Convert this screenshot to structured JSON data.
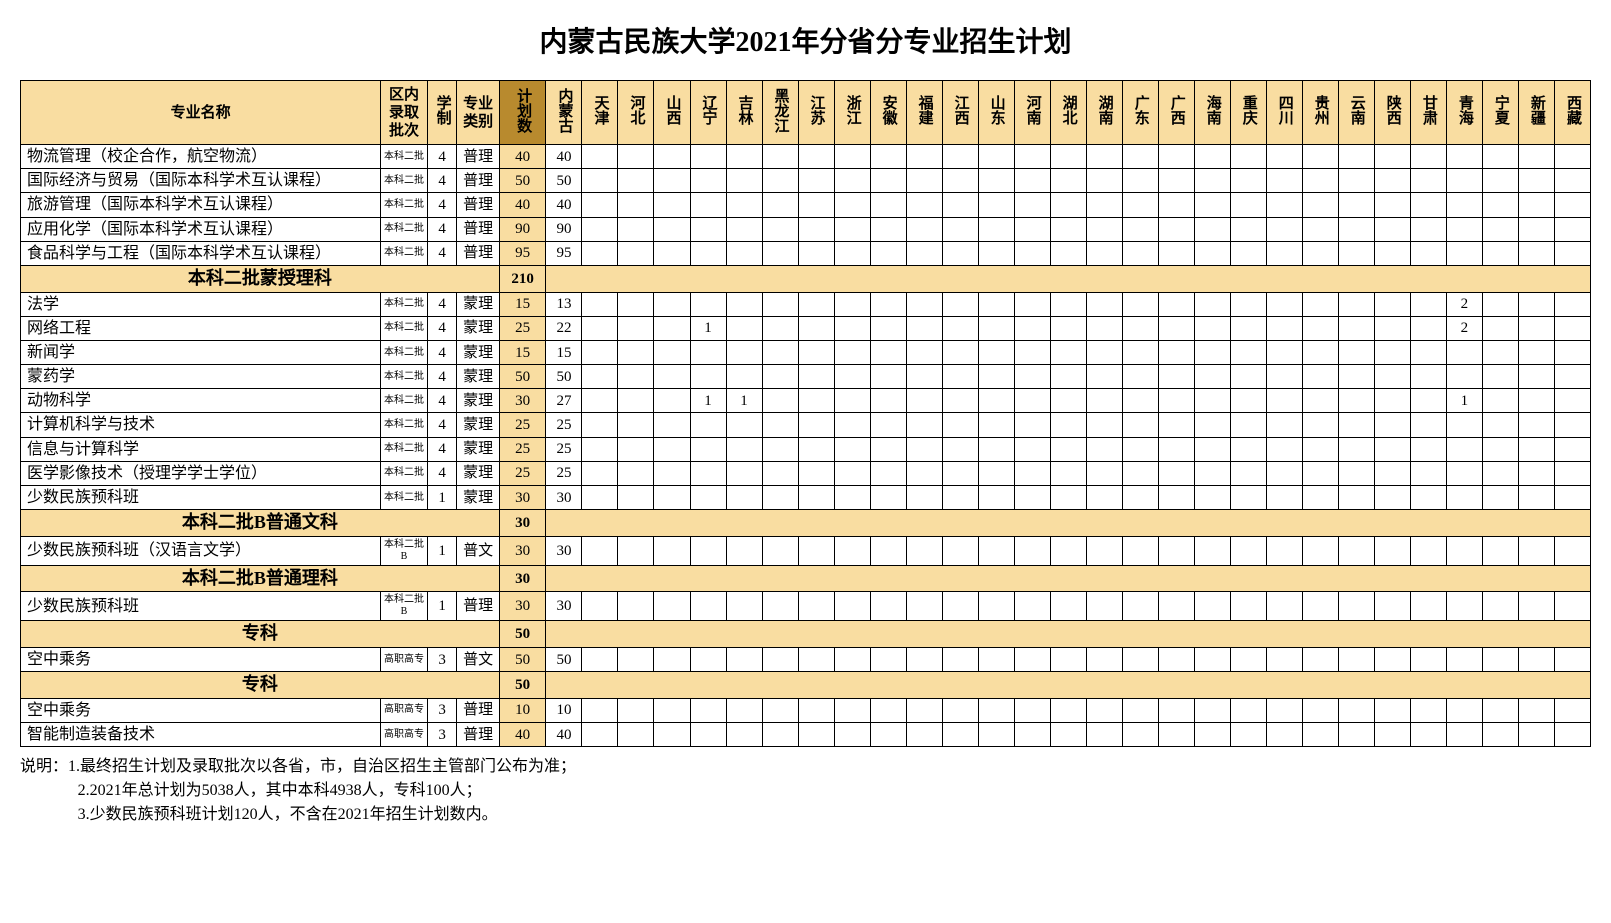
{
  "title": "内蒙古民族大学2021年分省分专业招生计划",
  "headers": {
    "name": "专业名称",
    "batch": "区内录取批次",
    "system": "学制",
    "category": "专业类别",
    "plan": "计划数",
    "provinces": [
      "内蒙古",
      "天津",
      "河北",
      "山西",
      "辽宁",
      "吉林",
      "黑龙江",
      "江苏",
      "浙江",
      "安徽",
      "福建",
      "江西",
      "山东",
      "河南",
      "湖北",
      "湖南",
      "广东",
      "广西",
      "海南",
      "重庆",
      "四川",
      "贵州",
      "云南",
      "陕西",
      "甘肃",
      "青海",
      "宁夏",
      "新疆",
      "西藏"
    ]
  },
  "rows": [
    {
      "type": "data",
      "name": "物流管理（校企合作，航空物流）",
      "batch": "本科二批",
      "sys": "4",
      "cat": "普理",
      "plan": "40",
      "vals": [
        "40",
        "",
        "",
        "",
        "",
        "",
        "",
        "",
        "",
        "",
        "",
        "",
        "",
        "",
        "",
        "",
        "",
        "",
        "",
        "",
        "",
        "",
        "",
        "",
        "",
        "",
        "",
        "",
        ""
      ]
    },
    {
      "type": "data",
      "name": "国际经济与贸易（国际本科学术互认课程）",
      "batch": "本科二批",
      "sys": "4",
      "cat": "普理",
      "plan": "50",
      "vals": [
        "50",
        "",
        "",
        "",
        "",
        "",
        "",
        "",
        "",
        "",
        "",
        "",
        "",
        "",
        "",
        "",
        "",
        "",
        "",
        "",
        "",
        "",
        "",
        "",
        "",
        "",
        "",
        "",
        ""
      ]
    },
    {
      "type": "data",
      "name": "旅游管理（国际本科学术互认课程）",
      "batch": "本科二批",
      "sys": "4",
      "cat": "普理",
      "plan": "40",
      "vals": [
        "40",
        "",
        "",
        "",
        "",
        "",
        "",
        "",
        "",
        "",
        "",
        "",
        "",
        "",
        "",
        "",
        "",
        "",
        "",
        "",
        "",
        "",
        "",
        "",
        "",
        "",
        "",
        "",
        ""
      ]
    },
    {
      "type": "data",
      "name": "应用化学（国际本科学术互认课程）",
      "batch": "本科二批",
      "sys": "4",
      "cat": "普理",
      "plan": "90",
      "vals": [
        "90",
        "",
        "",
        "",
        "",
        "",
        "",
        "",
        "",
        "",
        "",
        "",
        "",
        "",
        "",
        "",
        "",
        "",
        "",
        "",
        "",
        "",
        "",
        "",
        "",
        "",
        "",
        "",
        ""
      ]
    },
    {
      "type": "data",
      "name": "食品科学与工程（国际本科学术互认课程）",
      "batch": "本科二批",
      "sys": "4",
      "cat": "普理",
      "plan": "95",
      "vals": [
        "95",
        "",
        "",
        "",
        "",
        "",
        "",
        "",
        "",
        "",
        "",
        "",
        "",
        "",
        "",
        "",
        "",
        "",
        "",
        "",
        "",
        "",
        "",
        "",
        "",
        "",
        "",
        "",
        ""
      ]
    },
    {
      "type": "section",
      "title": "本科二批蒙授理科",
      "plan": "210"
    },
    {
      "type": "data",
      "name": "法学",
      "batch": "本科二批",
      "sys": "4",
      "cat": "蒙理",
      "plan": "15",
      "vals": [
        "13",
        "",
        "",
        "",
        "",
        "",
        "",
        "",
        "",
        "",
        "",
        "",
        "",
        "",
        "",
        "",
        "",
        "",
        "",
        "",
        "",
        "",
        "",
        "",
        "",
        "2",
        "",
        "",
        ""
      ]
    },
    {
      "type": "data",
      "name": "网络工程",
      "batch": "本科二批",
      "sys": "4",
      "cat": "蒙理",
      "plan": "25",
      "vals": [
        "22",
        "",
        "",
        "",
        "1",
        "",
        "",
        "",
        "",
        "",
        "",
        "",
        "",
        "",
        "",
        "",
        "",
        "",
        "",
        "",
        "",
        "",
        "",
        "",
        "",
        "2",
        "",
        "",
        ""
      ]
    },
    {
      "type": "data",
      "name": "新闻学",
      "batch": "本科二批",
      "sys": "4",
      "cat": "蒙理",
      "plan": "15",
      "vals": [
        "15",
        "",
        "",
        "",
        "",
        "",
        "",
        "",
        "",
        "",
        "",
        "",
        "",
        "",
        "",
        "",
        "",
        "",
        "",
        "",
        "",
        "",
        "",
        "",
        "",
        "",
        "",
        "",
        ""
      ]
    },
    {
      "type": "data",
      "name": "蒙药学",
      "batch": "本科二批",
      "sys": "4",
      "cat": "蒙理",
      "plan": "50",
      "vals": [
        "50",
        "",
        "",
        "",
        "",
        "",
        "",
        "",
        "",
        "",
        "",
        "",
        "",
        "",
        "",
        "",
        "",
        "",
        "",
        "",
        "",
        "",
        "",
        "",
        "",
        "",
        "",
        "",
        ""
      ]
    },
    {
      "type": "data",
      "name": "动物科学",
      "batch": "本科二批",
      "sys": "4",
      "cat": "蒙理",
      "plan": "30",
      "vals": [
        "27",
        "",
        "",
        "",
        "1",
        "1",
        "",
        "",
        "",
        "",
        "",
        "",
        "",
        "",
        "",
        "",
        "",
        "",
        "",
        "",
        "",
        "",
        "",
        "",
        "",
        "1",
        "",
        "",
        ""
      ]
    },
    {
      "type": "data",
      "name": "计算机科学与技术",
      "batch": "本科二批",
      "sys": "4",
      "cat": "蒙理",
      "plan": "25",
      "vals": [
        "25",
        "",
        "",
        "",
        "",
        "",
        "",
        "",
        "",
        "",
        "",
        "",
        "",
        "",
        "",
        "",
        "",
        "",
        "",
        "",
        "",
        "",
        "",
        "",
        "",
        "",
        "",
        "",
        ""
      ]
    },
    {
      "type": "data",
      "name": "信息与计算科学",
      "batch": "本科二批",
      "sys": "4",
      "cat": "蒙理",
      "plan": "25",
      "vals": [
        "25",
        "",
        "",
        "",
        "",
        "",
        "",
        "",
        "",
        "",
        "",
        "",
        "",
        "",
        "",
        "",
        "",
        "",
        "",
        "",
        "",
        "",
        "",
        "",
        "",
        "",
        "",
        "",
        ""
      ]
    },
    {
      "type": "data",
      "name": "医学影像技术（授理学学士学位）",
      "batch": "本科二批",
      "sys": "4",
      "cat": "蒙理",
      "plan": "25",
      "vals": [
        "25",
        "",
        "",
        "",
        "",
        "",
        "",
        "",
        "",
        "",
        "",
        "",
        "",
        "",
        "",
        "",
        "",
        "",
        "",
        "",
        "",
        "",
        "",
        "",
        "",
        "",
        "",
        "",
        ""
      ]
    },
    {
      "type": "data",
      "name": "少数民族预科班",
      "batch": "本科二批",
      "sys": "1",
      "cat": "蒙理",
      "plan": "30",
      "vals": [
        "30",
        "",
        "",
        "",
        "",
        "",
        "",
        "",
        "",
        "",
        "",
        "",
        "",
        "",
        "",
        "",
        "",
        "",
        "",
        "",
        "",
        "",
        "",
        "",
        "",
        "",
        "",
        "",
        ""
      ]
    },
    {
      "type": "section",
      "title": "本科二批B普通文科",
      "plan": "30"
    },
    {
      "type": "data",
      "name": "少数民族预科班（汉语言文学）",
      "batch": "本科二批B",
      "sys": "1",
      "cat": "普文",
      "plan": "30",
      "vals": [
        "30",
        "",
        "",
        "",
        "",
        "",
        "",
        "",
        "",
        "",
        "",
        "",
        "",
        "",
        "",
        "",
        "",
        "",
        "",
        "",
        "",
        "",
        "",
        "",
        "",
        "",
        "",
        "",
        ""
      ]
    },
    {
      "type": "section",
      "title": "本科二批B普通理科",
      "plan": "30"
    },
    {
      "type": "data",
      "name": "少数民族预科班",
      "batch": "本科二批B",
      "sys": "1",
      "cat": "普理",
      "plan": "30",
      "vals": [
        "30",
        "",
        "",
        "",
        "",
        "",
        "",
        "",
        "",
        "",
        "",
        "",
        "",
        "",
        "",
        "",
        "",
        "",
        "",
        "",
        "",
        "",
        "",
        "",
        "",
        "",
        "",
        "",
        ""
      ]
    },
    {
      "type": "section",
      "title": "专科",
      "plan": "50"
    },
    {
      "type": "data",
      "name": "空中乘务",
      "batch": "高职高专",
      "sys": "3",
      "cat": "普文",
      "plan": "50",
      "vals": [
        "50",
        "",
        "",
        "",
        "",
        "",
        "",
        "",
        "",
        "",
        "",
        "",
        "",
        "",
        "",
        "",
        "",
        "",
        "",
        "",
        "",
        "",
        "",
        "",
        "",
        "",
        "",
        "",
        ""
      ]
    },
    {
      "type": "section",
      "title": "专科",
      "plan": "50"
    },
    {
      "type": "data",
      "name": "空中乘务",
      "batch": "高职高专",
      "sys": "3",
      "cat": "普理",
      "plan": "10",
      "vals": [
        "10",
        "",
        "",
        "",
        "",
        "",
        "",
        "",
        "",
        "",
        "",
        "",
        "",
        "",
        "",
        "",
        "",
        "",
        "",
        "",
        "",
        "",
        "",
        "",
        "",
        "",
        "",
        "",
        ""
      ]
    },
    {
      "type": "data",
      "name": "智能制造装备技术",
      "batch": "高职高专",
      "sys": "3",
      "cat": "普理",
      "plan": "40",
      "vals": [
        "40",
        "",
        "",
        "",
        "",
        "",
        "",
        "",
        "",
        "",
        "",
        "",
        "",
        "",
        "",
        "",
        "",
        "",
        "",
        "",
        "",
        "",
        "",
        "",
        "",
        "",
        "",
        "",
        ""
      ]
    }
  ],
  "notes": {
    "prefix": "说明：",
    "lines": [
      "1.最终招生计划及录取批次以各省，市，自治区招生主管部门公布为准；",
      "2.2021年总计划为5038人，其中本科4938人，专科100人；",
      "3.少数民族预科班计划120人，不含在2021年招生计划数内。"
    ]
  },
  "styling": {
    "header_bg": "#f9dda1",
    "plan_header_bg": "#b88a2e",
    "plan_cell_bg": "#f9dda1",
    "border_color": "#000000",
    "background": "#ffffff",
    "title_fontsize": 28,
    "body_fontsize": 15,
    "name_fontsize": 16,
    "batch_fontsize": 10
  }
}
